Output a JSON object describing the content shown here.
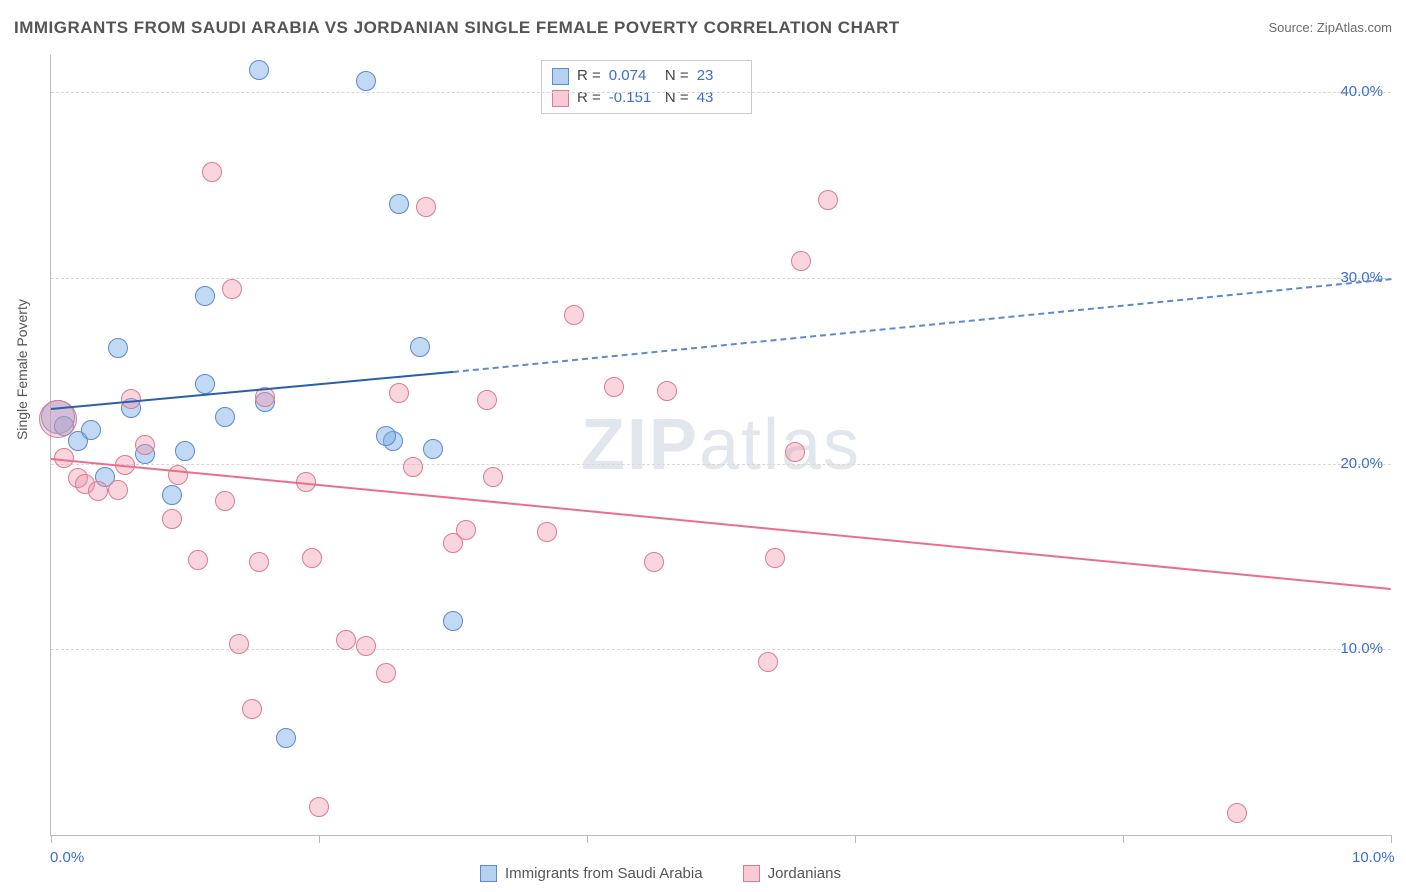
{
  "title": "IMMIGRANTS FROM SAUDI ARABIA VS JORDANIAN SINGLE FEMALE POVERTY CORRELATION CHART",
  "source": "Source: ZipAtlas.com",
  "watermark_zip": "ZIP",
  "watermark_rest": "atlas",
  "ylabel": "Single Female Poverty",
  "chart": {
    "type": "scatter",
    "background_color": "#ffffff",
    "grid_color": "#d8d8d8",
    "axis_color": "#bbbbbb",
    "xlim": [
      0,
      10
    ],
    "ylim": [
      0,
      42
    ],
    "x_ticks": [
      0,
      2,
      4,
      6,
      8,
      10
    ],
    "y_gridlines": [
      10,
      20,
      30,
      40
    ],
    "x_axis_labels": [
      {
        "val": 0.0,
        "text": "0.0%"
      },
      {
        "val": 10.0,
        "text": "10.0%"
      }
    ],
    "y_axis_labels": [
      {
        "val": 10,
        "text": "10.0%"
      },
      {
        "val": 20,
        "text": "20.0%"
      },
      {
        "val": 30,
        "text": "30.0%"
      },
      {
        "val": 40,
        "text": "40.0%"
      }
    ],
    "marker_radius": 9,
    "series": [
      {
        "name": "Immigrants from Saudi Arabia",
        "color_fill": "rgba(120,170,230,0.45)",
        "color_stroke": "#5a8bd0",
        "css_class": "blue-pt",
        "R": "0.074",
        "N": "23",
        "trend": {
          "x1": 0,
          "y1": 23,
          "x2": 3,
          "y2": 25,
          "x2_ext": 10,
          "y2_ext": 30,
          "solid_stroke": "#2a5fb0",
          "dash_stroke": "#5a8bd0",
          "width": 2.5
        },
        "points": [
          {
            "x": 0.05,
            "y": 22.5,
            "r": 16
          },
          {
            "x": 0.1,
            "y": 22
          },
          {
            "x": 0.2,
            "y": 21.2
          },
          {
            "x": 0.3,
            "y": 21.8
          },
          {
            "x": 0.4,
            "y": 19.3
          },
          {
            "x": 0.5,
            "y": 26.2
          },
          {
            "x": 0.6,
            "y": 23
          },
          {
            "x": 0.7,
            "y": 20.5
          },
          {
            "x": 0.9,
            "y": 18.3
          },
          {
            "x": 1.0,
            "y": 20.7
          },
          {
            "x": 1.15,
            "y": 24.3
          },
          {
            "x": 1.15,
            "y": 29
          },
          {
            "x": 1.3,
            "y": 22.5
          },
          {
            "x": 1.55,
            "y": 41.2
          },
          {
            "x": 1.6,
            "y": 23.3
          },
          {
            "x": 1.75,
            "y": 5.2
          },
          {
            "x": 2.35,
            "y": 40.6
          },
          {
            "x": 2.55,
            "y": 21.2
          },
          {
            "x": 2.6,
            "y": 34
          },
          {
            "x": 2.75,
            "y": 26.3
          },
          {
            "x": 2.85,
            "y": 20.8
          },
          {
            "x": 3.0,
            "y": 11.5
          },
          {
            "x": 2.5,
            "y": 21.5
          }
        ]
      },
      {
        "name": "Jordanians",
        "color_fill": "rgba(240,150,170,0.4)",
        "color_stroke": "#dd7a94",
        "css_class": "pink-pt",
        "R": "-0.151",
        "N": "43",
        "trend": {
          "x1": 0,
          "y1": 20.3,
          "x2": 10,
          "y2": 13.3,
          "solid_stroke": "#e96f8f",
          "width": 2.5
        },
        "points": [
          {
            "x": 0.05,
            "y": 22.4,
            "r": 18
          },
          {
            "x": 0.1,
            "y": 20.3
          },
          {
            "x": 0.2,
            "y": 19.2
          },
          {
            "x": 0.25,
            "y": 18.9
          },
          {
            "x": 0.35,
            "y": 18.5
          },
          {
            "x": 0.5,
            "y": 18.6
          },
          {
            "x": 0.55,
            "y": 19.9
          },
          {
            "x": 0.6,
            "y": 23.5
          },
          {
            "x": 0.7,
            "y": 21
          },
          {
            "x": 0.9,
            "y": 17
          },
          {
            "x": 0.95,
            "y": 19.4
          },
          {
            "x": 1.1,
            "y": 14.8
          },
          {
            "x": 1.2,
            "y": 35.7
          },
          {
            "x": 1.3,
            "y": 18
          },
          {
            "x": 1.35,
            "y": 29.4
          },
          {
            "x": 1.4,
            "y": 10.3
          },
          {
            "x": 1.5,
            "y": 6.8
          },
          {
            "x": 1.55,
            "y": 14.7
          },
          {
            "x": 1.6,
            "y": 23.6
          },
          {
            "x": 1.9,
            "y": 19
          },
          {
            "x": 1.95,
            "y": 14.9
          },
          {
            "x": 2.0,
            "y": 1.5
          },
          {
            "x": 2.2,
            "y": 10.5
          },
          {
            "x": 2.35,
            "y": 10.2
          },
          {
            "x": 2.5,
            "y": 8.7
          },
          {
            "x": 2.6,
            "y": 23.8
          },
          {
            "x": 2.7,
            "y": 19.8
          },
          {
            "x": 2.8,
            "y": 33.8
          },
          {
            "x": 3.0,
            "y": 15.7
          },
          {
            "x": 3.1,
            "y": 16.4
          },
          {
            "x": 3.25,
            "y": 23.4
          },
          {
            "x": 3.3,
            "y": 19.3
          },
          {
            "x": 3.7,
            "y": 16.3
          },
          {
            "x": 3.9,
            "y": 28
          },
          {
            "x": 4.2,
            "y": 24.1
          },
          {
            "x": 4.5,
            "y": 14.7
          },
          {
            "x": 4.6,
            "y": 23.9
          },
          {
            "x": 5.35,
            "y": 9.3
          },
          {
            "x": 5.4,
            "y": 14.9
          },
          {
            "x": 5.55,
            "y": 20.6
          },
          {
            "x": 5.6,
            "y": 30.9
          },
          {
            "x": 5.8,
            "y": 34.2
          },
          {
            "x": 8.85,
            "y": 1.2
          }
        ]
      }
    ]
  },
  "corr_legend_stats": [
    {
      "sq_class": "sq-blue",
      "R": "0.074",
      "N": "23"
    },
    {
      "sq_class": "sq-pink",
      "R": "-0.151",
      "N": "43"
    }
  ],
  "bottom_legend": [
    {
      "sq_class": "sq-blue",
      "label": "Immigrants from Saudi Arabia"
    },
    {
      "sq_class": "sq-pink",
      "label": "Jordanians"
    }
  ]
}
